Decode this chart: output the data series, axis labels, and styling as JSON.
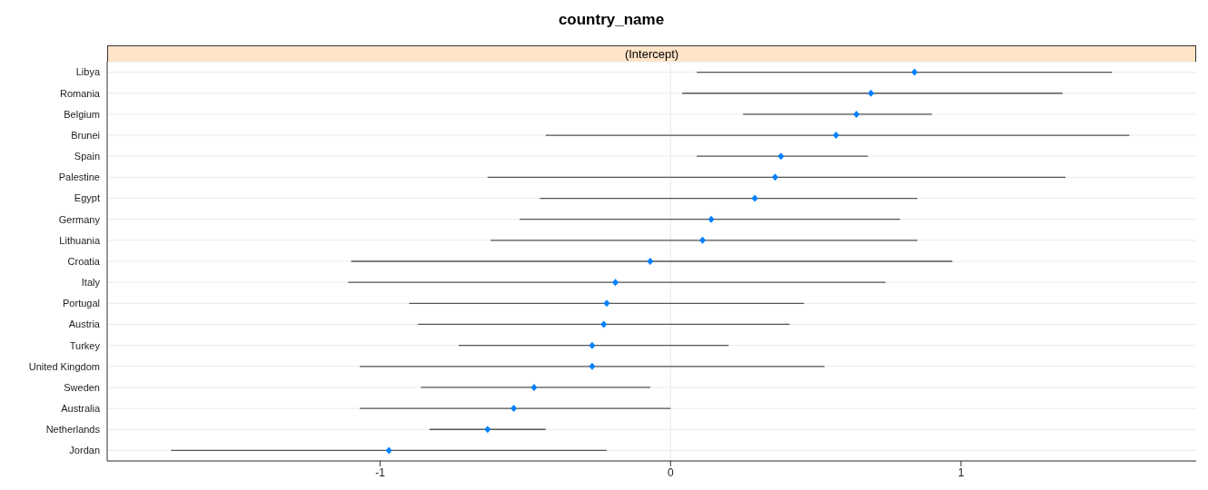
{
  "chart_data": {
    "type": "scatter",
    "title": "country_name",
    "subtitle": "(Intercept)",
    "orientation": "horizontal",
    "categories": [
      "Libya",
      "Romania",
      "Belgium",
      "Brunei",
      "Spain",
      "Palestine",
      "Egypt",
      "Germany",
      "Lithuania",
      "Croatia",
      "Italy",
      "Portugal",
      "Austria",
      "Turkey",
      "United Kingdom",
      "Sweden",
      "Australia",
      "Netherlands",
      "Jordan"
    ],
    "values": [
      0.84,
      0.69,
      0.64,
      0.57,
      0.38,
      0.36,
      0.29,
      0.14,
      0.11,
      -0.07,
      -0.19,
      -0.22,
      -0.23,
      -0.27,
      -0.27,
      -0.47,
      -0.54,
      -0.63,
      -0.97
    ],
    "errors": [
      [
        0.09,
        1.52
      ],
      [
        0.04,
        1.35
      ],
      [
        0.25,
        0.9
      ],
      [
        -0.43,
        1.58
      ],
      [
        0.09,
        0.68
      ],
      [
        -0.63,
        1.36
      ],
      [
        -0.45,
        0.85
      ],
      [
        -0.52,
        0.79
      ],
      [
        -0.62,
        0.85
      ],
      [
        -1.1,
        0.97
      ],
      [
        -1.11,
        0.74
      ],
      [
        -0.9,
        0.46
      ],
      [
        -0.87,
        0.41
      ],
      [
        -0.73,
        0.2
      ],
      [
        -1.07,
        0.53
      ],
      [
        -0.86,
        -0.07
      ],
      [
        -1.07,
        0.0
      ],
      [
        -0.83,
        -0.43
      ],
      [
        -1.72,
        -0.22
      ]
    ],
    "color": "#0080ff",
    "marker": "diamond",
    "xlim": [
      -1.94,
      1.81
    ],
    "xticks": [
      -1,
      0,
      1
    ],
    "grid": "y",
    "ref_lines": [
      {
        "axis": "x",
        "value": 0,
        "color": "#e6e6e6"
      }
    ]
  }
}
